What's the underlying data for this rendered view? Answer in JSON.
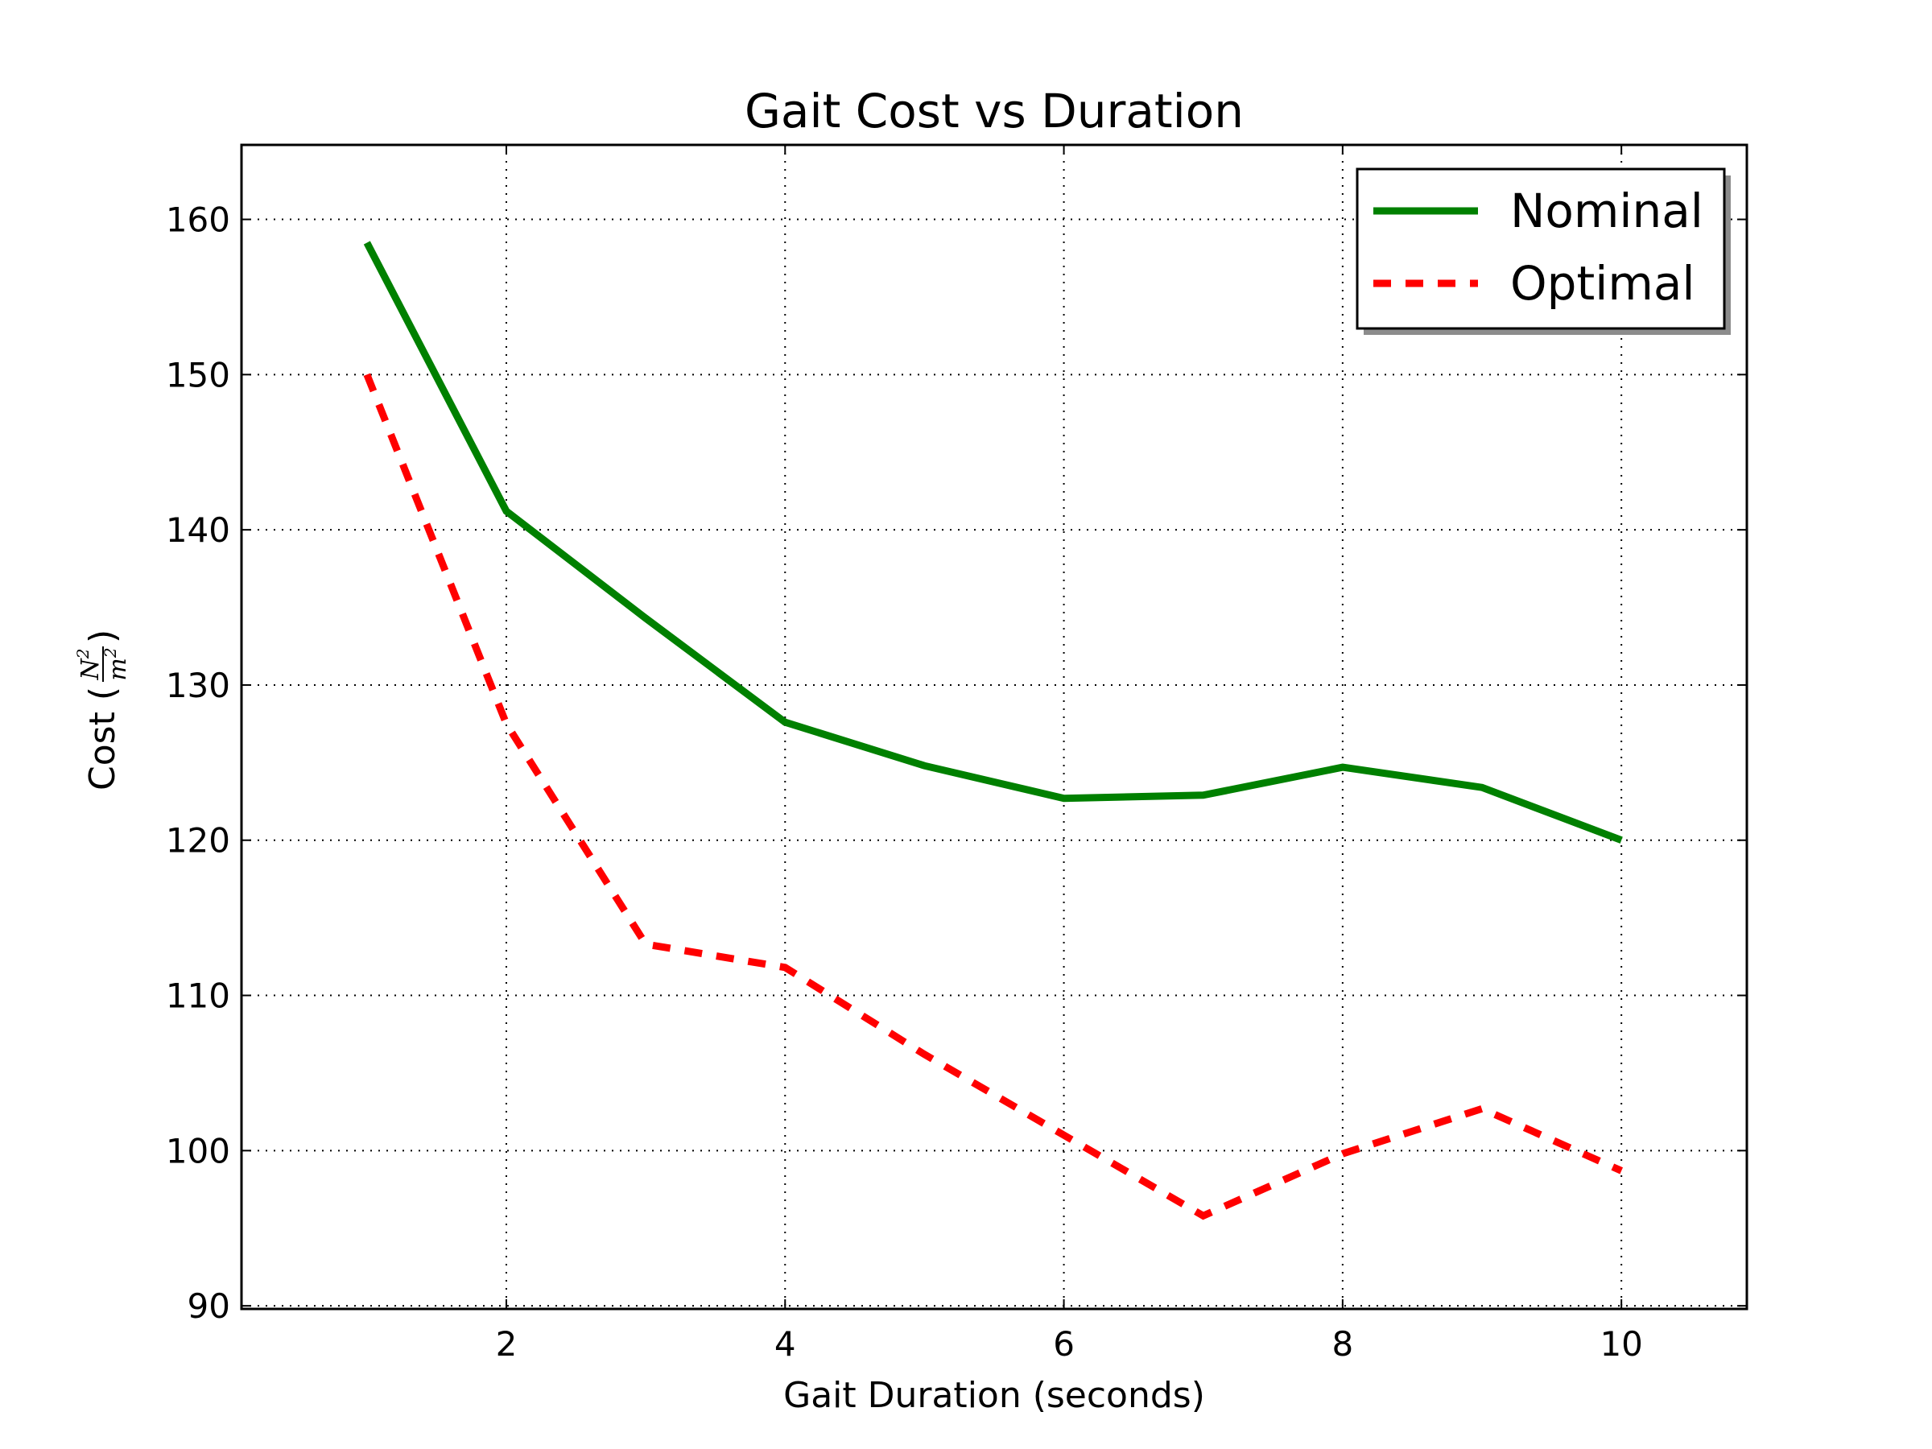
{
  "chart_data": {
    "type": "line",
    "title": "Gait Cost vs Duration",
    "xlabel": "Gait Duration (seconds)",
    "ylabel": "Cost (",
    "ylabel_math": {
      "numerator": "N",
      "numerator_sup": "2",
      "denominator": "m",
      "denominator_sup": "2"
    },
    "ylabel_close": ")",
    "xlim": [
      0.1,
      10.9
    ],
    "ylim": [
      89.8,
      164.8
    ],
    "xticks": [
      2,
      4,
      6,
      8,
      10
    ],
    "yticks": [
      90,
      100,
      110,
      120,
      130,
      140,
      150,
      160
    ],
    "grid": true,
    "legend_position": "top-right",
    "x": [
      1,
      2,
      3,
      4,
      5,
      6,
      7,
      8,
      9,
      10
    ],
    "series": [
      {
        "name": "Nominal",
        "color": "#008000",
        "style": "solid",
        "values": [
          158.5,
          141.2,
          134.3,
          127.6,
          124.8,
          122.7,
          122.9,
          124.7,
          123.4,
          120.0
        ]
      },
      {
        "name": "Optimal",
        "color": "#ff0000",
        "style": "dashed",
        "values": [
          150.0,
          127.5,
          113.3,
          111.8,
          106.2,
          101.0,
          95.8,
          99.8,
          102.7,
          98.7
        ]
      }
    ]
  }
}
